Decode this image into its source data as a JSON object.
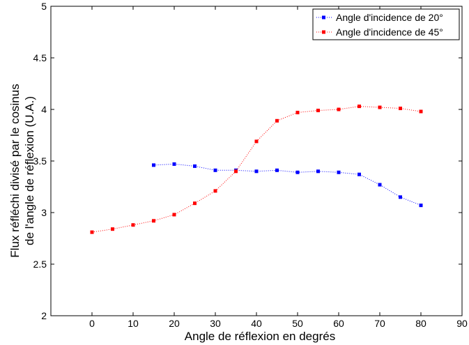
{
  "chart_data": {
    "type": "line",
    "title": "",
    "xlabel": "Angle de réflexion en degrés",
    "ylabel_lines": [
      "Flux réfléchi divisé par le cosinus",
      "de l'angle de réflexion (U.A.)"
    ],
    "xlim": [
      -10,
      90
    ],
    "ylim": [
      2,
      5
    ],
    "x_ticks": [
      0,
      10,
      20,
      30,
      40,
      50,
      60,
      70,
      80,
      90
    ],
    "y_ticks": [
      2,
      2.5,
      3,
      3.5,
      4,
      4.5,
      5
    ],
    "grid": false,
    "legend_position": "top-right",
    "series": [
      {
        "name": "Angle d'incidence de 20°",
        "color": "#0000ff",
        "line_style": "dotted",
        "marker": "square",
        "x": [
          15,
          20,
          25,
          30,
          35,
          40,
          45,
          50,
          55,
          60,
          65,
          70,
          75,
          80
        ],
        "values": [
          3.46,
          3.47,
          3.45,
          3.41,
          3.41,
          3.4,
          3.41,
          3.39,
          3.4,
          3.39,
          3.37,
          3.27,
          3.15,
          3.07
        ]
      },
      {
        "name": "Angle d'incidence de 45°",
        "color": "#ff0000",
        "line_style": "dotted",
        "marker": "square",
        "x": [
          0,
          5,
          10,
          15,
          20,
          25,
          30,
          35,
          40,
          45,
          50,
          55,
          60,
          65,
          70,
          75,
          80
        ],
        "values": [
          2.81,
          2.84,
          2.88,
          2.92,
          2.98,
          3.09,
          3.21,
          3.4,
          3.69,
          3.89,
          3.97,
          3.99,
          4.0,
          4.03,
          4.02,
          4.01,
          3.98
        ]
      }
    ]
  }
}
